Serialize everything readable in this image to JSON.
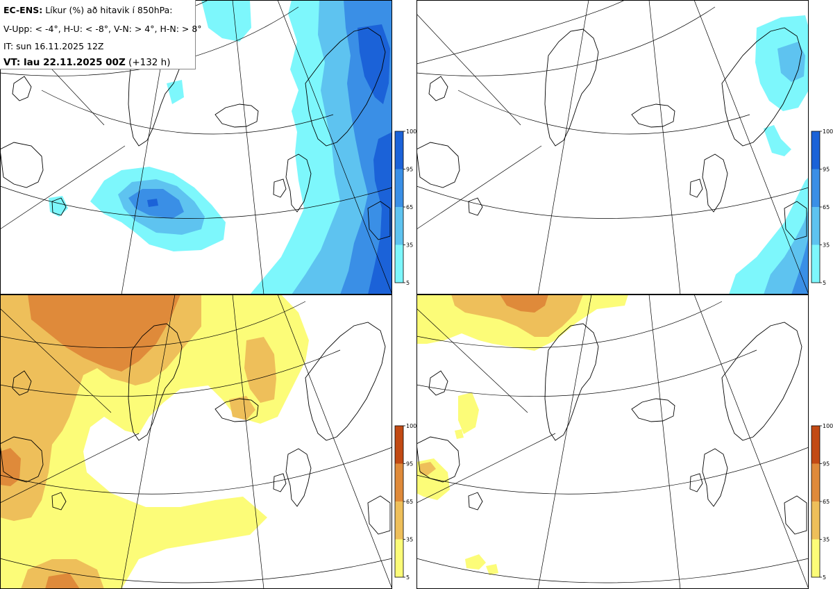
{
  "header": {
    "model": "EC-ENS:",
    "title_rest": "Líkur (%) að hitavik í 850hPa:",
    "thresholds": "V-Upp: < -4°, H-U: < -8°, V-N: > 4°, H-N: > 8°",
    "initial_time": "IT: sun 16.11.2025 12Z",
    "valid_label": "VT: lau 22.11.2025 00Z",
    "valid_offset": "(+132 h)"
  },
  "colorbar": {
    "ticks": [
      "100",
      "95",
      "65",
      "35",
      "5"
    ],
    "blue_scale": [
      "#1b62d8",
      "#3a8fe6",
      "#5ec3f0",
      "#7df7fc"
    ],
    "orange_scale": [
      "#c24a14",
      "#df8a3a",
      "#eebf5a",
      "#fcfc78"
    ]
  },
  "panels": [
    {
      "id": "upper-left",
      "quantity": "V-Upp: < -4°",
      "scale": "blue"
    },
    {
      "id": "upper-right",
      "quantity": "H-U: < -8°",
      "scale": "blue"
    },
    {
      "id": "lower-left",
      "quantity": "V-N: > 4°",
      "scale": "orange"
    },
    {
      "id": "lower-right",
      "quantity": "H-N: > 8°",
      "scale": "orange"
    }
  ]
}
